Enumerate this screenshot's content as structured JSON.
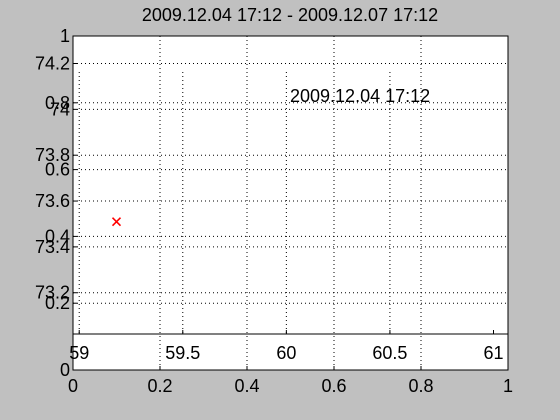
{
  "figure": {
    "title": "2009.12.04 17:12 - 2009.12.07 17:12",
    "annotation": "2009.12.04 17:12",
    "colors": {
      "background": "#c0c0c0",
      "axes_face": "#ffffff",
      "marker": "#ff0000",
      "grid": "#000000"
    }
  },
  "chart_data": {
    "type": "scatter",
    "title": "2009.12.04 17:12 - 2009.12.07 17:12",
    "annotations": [
      "2009.12.04 17:12"
    ],
    "marker": "x",
    "grid": "dotted",
    "axes": [
      {
        "name": "base",
        "xlim": [
          0,
          1
        ],
        "ylim": [
          0,
          1
        ],
        "xticks": [
          "0",
          "0.2",
          "0.4",
          "0.6",
          "0.8",
          "1"
        ],
        "yticks": [
          "0",
          "0.2",
          "0.4",
          "0.6",
          "0.8",
          "1"
        ]
      },
      {
        "name": "overlay",
        "xlim": [
          58.97,
          61.07
        ],
        "ylim": [
          73.02,
          74.32
        ],
        "xticks": [
          "59",
          "59.5",
          "60",
          "60.5",
          "61"
        ],
        "yticks": [
          "73.2",
          "73.4",
          "73.6",
          "73.8",
          "74",
          "74.2"
        ]
      }
    ],
    "series": [
      {
        "axes": "overlay",
        "points": [
          {
            "x": 59.18,
            "y": 73.51
          }
        ]
      }
    ]
  }
}
